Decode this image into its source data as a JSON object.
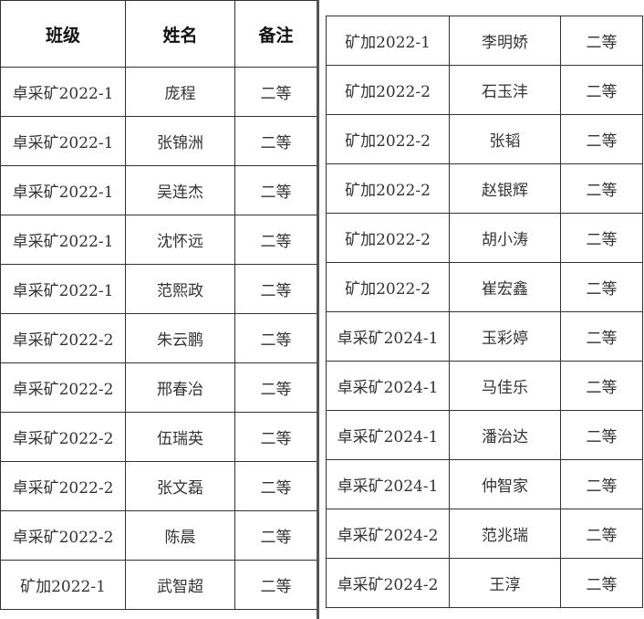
{
  "headers": {
    "class": "班级",
    "name": "姓名",
    "note": "备注"
  },
  "left_rows": [
    {
      "class": "卓采矿2022-1",
      "name": "庞程",
      "note": "二等"
    },
    {
      "class": "卓采矿2022-1",
      "name": "张锦洲",
      "note": "二等"
    },
    {
      "class": "卓采矿2022-1",
      "name": "吴连杰",
      "note": "二等"
    },
    {
      "class": "卓采矿2022-1",
      "name": "沈怀远",
      "note": "二等"
    },
    {
      "class": "卓采矿2022-1",
      "name": "范熙政",
      "note": "二等"
    },
    {
      "class": "卓采矿2022-2",
      "name": "朱云鹏",
      "note": "二等"
    },
    {
      "class": "卓采矿2022-2",
      "name": "邢春冶",
      "note": "二等"
    },
    {
      "class": "卓采矿2022-2",
      "name": "伍瑞英",
      "note": "二等"
    },
    {
      "class": "卓采矿2022-2",
      "name": "张文磊",
      "note": "二等"
    },
    {
      "class": "卓采矿2022-2",
      "name": "陈晨",
      "note": "二等"
    },
    {
      "class": "矿加2022-1",
      "name": "武智超",
      "note": "二等"
    }
  ],
  "right_rows": [
    {
      "class": "矿加2022-1",
      "name": "李明娇",
      "note": "二等"
    },
    {
      "class": "矿加2022-2",
      "name": "石玉沣",
      "note": "二等"
    },
    {
      "class": "矿加2022-2",
      "name": "张韬",
      "note": "二等"
    },
    {
      "class": "矿加2022-2",
      "name": "赵银辉",
      "note": "二等"
    },
    {
      "class": "矿加2022-2",
      "name": "胡小涛",
      "note": "二等"
    },
    {
      "class": "矿加2022-2",
      "name": "崔宏鑫",
      "note": "二等"
    },
    {
      "class": "卓采矿2024-1",
      "name": "玉彩婷",
      "note": "二等"
    },
    {
      "class": "卓采矿2024-1",
      "name": "马佳乐",
      "note": "二等"
    },
    {
      "class": "卓采矿2024-1",
      "name": "潘治达",
      "note": "二等"
    },
    {
      "class": "卓采矿2024-1",
      "name": "仲智家",
      "note": "二等"
    },
    {
      "class": "卓采矿2024-2",
      "name": "范兆瑞",
      "note": "二等"
    },
    {
      "class": "卓采矿2024-2",
      "name": "王淳",
      "note": "二等"
    }
  ]
}
